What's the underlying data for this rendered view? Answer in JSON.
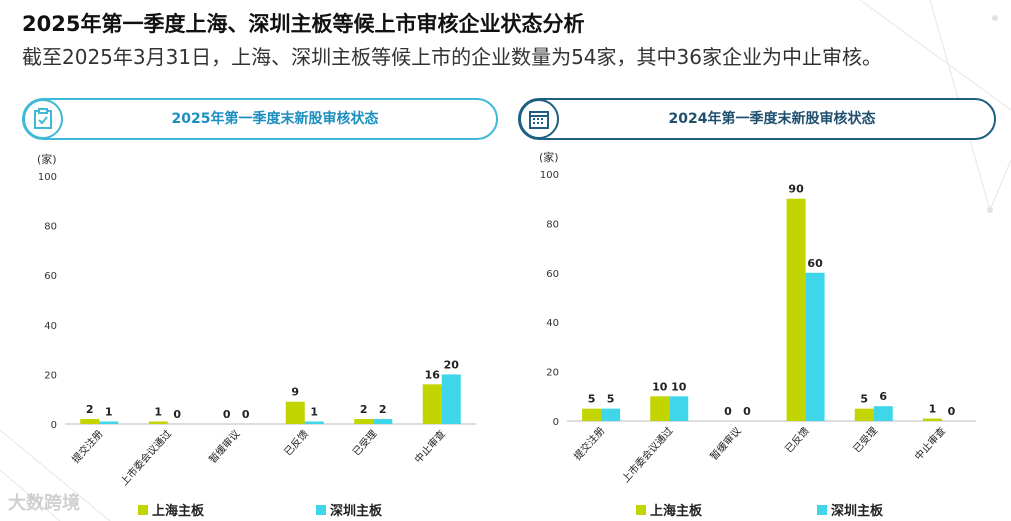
{
  "page": {
    "title": "2025年第一季度上海、深圳主板等候上市审核企业状态分析",
    "subtitle": "截至2025年3月31日，上海、深圳主板等候上市的企业数量为54家，其中36家企业为中止审核。",
    "watermark": "大数跨境"
  },
  "colors": {
    "shanghai": "#c2d500",
    "shenzhen": "#3fd6ea",
    "accent1": "#3fb9d6",
    "accent2": "#1f5f82"
  },
  "panels": [
    {
      "title": "2025年第一季度末新股审核状态",
      "icon": "clipboard-check-icon"
    },
    {
      "title": "2024年第一季度末新股审核状态",
      "icon": "calendar-icon"
    }
  ],
  "chart_data": [
    {
      "type": "bar",
      "title": "2025年第一季度末新股审核状态",
      "ylabel": "(家)",
      "ylim": [
        0,
        100
      ],
      "yticks": [
        0,
        20,
        40,
        60,
        80,
        100
      ],
      "categories": [
        "提交注册",
        "上市委会议通过",
        "暂缓审议",
        "已反馈",
        "已受理",
        "中止审查"
      ],
      "series": [
        {
          "name": "上海主板",
          "values": [
            2,
            1,
            0,
            9,
            2,
            16
          ]
        },
        {
          "name": "深圳主板",
          "values": [
            1,
            0,
            0,
            1,
            2,
            20
          ]
        }
      ],
      "legend": "bottom"
    },
    {
      "type": "bar",
      "title": "2024年第一季度末新股审核状态",
      "ylabel": "(家)",
      "ylim": [
        0,
        100
      ],
      "yticks": [
        0,
        20,
        40,
        60,
        80,
        100
      ],
      "categories": [
        "提交注册",
        "上市委会议通过",
        "暂缓审议",
        "已反馈",
        "已受理",
        "中止审查"
      ],
      "series": [
        {
          "name": "上海主板",
          "values": [
            5,
            10,
            0,
            90,
            5,
            1
          ]
        },
        {
          "name": "深圳主板",
          "values": [
            5,
            10,
            0,
            60,
            6,
            0
          ]
        }
      ],
      "legend": "bottom"
    }
  ]
}
